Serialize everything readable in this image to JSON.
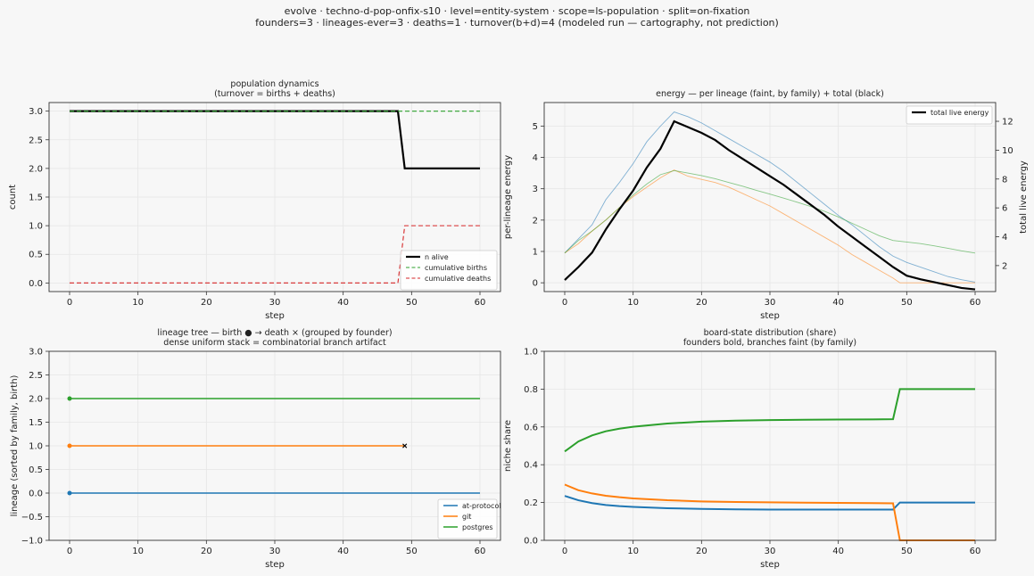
{
  "suptitle": {
    "line1": "evolve · techno-d-pop-onfix-s10 · level=entity-system · scope=ls-population · split=on-fixation",
    "line2": "founders=3 · lineages-ever=3 · deaths=1 · turnover(b+d)=4   (modeled run — cartography, not prediction)"
  },
  "colors": {
    "at-protocol": "#1f77b4",
    "git": "#ff7f0e",
    "postgres": "#2ca02c",
    "alive": "#000000",
    "births": "#2ca02c",
    "deaths": "#d62728",
    "axes_bg": "#f7f7f7",
    "grid": "#e6e6e6"
  },
  "chart_data": [
    {
      "id": "population",
      "type": "line",
      "title": "population dynamics",
      "subtitle": "(turnover = births + deaths)",
      "xlabel": "step",
      "ylabel": "count",
      "xlim": [
        -3,
        63
      ],
      "ylim": [
        -0.15,
        3.15
      ],
      "xticks": [
        0,
        10,
        20,
        30,
        40,
        50,
        60
      ],
      "yticks": [
        0.0,
        0.5,
        1.0,
        1.5,
        2.0,
        2.5,
        3.0
      ],
      "yticklabels": [
        "0.0",
        "0.5",
        "1.0",
        "1.5",
        "2.0",
        "2.5",
        "3.0"
      ],
      "grid": true,
      "legend": "lower-right",
      "series": [
        {
          "name": "n alive",
          "color": "#000000",
          "style": "solid",
          "width": 2.2,
          "x": [
            0,
            48,
            49,
            60
          ],
          "y": [
            3,
            3,
            2,
            2
          ]
        },
        {
          "name": "cumulative births",
          "color": "#2ca02c",
          "style": "dashed",
          "width": 1.1,
          "x": [
            0,
            60
          ],
          "y": [
            3,
            3
          ]
        },
        {
          "name": "cumulative deaths",
          "color": "#d62728",
          "style": "dashed",
          "width": 1.1,
          "x": [
            0,
            48,
            49,
            60
          ],
          "y": [
            0,
            0,
            1,
            1
          ]
        }
      ]
    },
    {
      "id": "energy",
      "type": "line",
      "title": "energy — per lineage (faint, by family) + total (black)",
      "xlabel": "step",
      "ylabel": "per-lineage energy",
      "y2label": "total live energy",
      "xlim": [
        -3,
        63
      ],
      "ylim": [
        -0.28,
        5.75
      ],
      "y2lim": [
        0.2,
        13.3
      ],
      "xticks": [
        0,
        10,
        20,
        30,
        40,
        50,
        60
      ],
      "yticks": [
        0,
        1,
        2,
        3,
        4,
        5
      ],
      "y2ticks": [
        2,
        4,
        6,
        8,
        10,
        12
      ],
      "grid": true,
      "legend": "top-right",
      "series": [
        {
          "name": "at-protocol",
          "color": "#1f77b4",
          "faint": true,
          "axis": "left",
          "x": [
            0,
            2,
            4,
            6,
            8,
            10,
            12,
            14,
            16,
            18,
            20,
            22,
            24,
            26,
            28,
            30,
            32,
            34,
            36,
            38,
            40,
            42,
            44,
            46,
            48,
            50,
            52,
            54,
            56,
            58,
            60
          ],
          "y": [
            0.95,
            1.4,
            1.85,
            2.65,
            3.2,
            3.8,
            4.5,
            5.0,
            5.45,
            5.3,
            5.1,
            4.85,
            4.6,
            4.35,
            4.1,
            3.85,
            3.55,
            3.2,
            2.85,
            2.5,
            2.15,
            1.85,
            1.5,
            1.15,
            0.85,
            0.65,
            0.5,
            0.35,
            0.2,
            0.1,
            0.02
          ]
        },
        {
          "name": "git",
          "color": "#ff7f0e",
          "faint": true,
          "axis": "left",
          "x": [
            0,
            2,
            4,
            6,
            8,
            10,
            12,
            14,
            16,
            18,
            20,
            22,
            24,
            26,
            28,
            30,
            32,
            34,
            36,
            38,
            40,
            42,
            44,
            46,
            48,
            49,
            60
          ],
          "y": [
            0.95,
            1.25,
            1.65,
            2.0,
            2.4,
            2.75,
            3.05,
            3.35,
            3.6,
            3.4,
            3.3,
            3.2,
            3.05,
            2.85,
            2.65,
            2.45,
            2.2,
            1.95,
            1.7,
            1.45,
            1.2,
            0.9,
            0.65,
            0.4,
            0.15,
            0.0,
            0.0
          ]
        },
        {
          "name": "postgres",
          "color": "#2ca02c",
          "faint": true,
          "axis": "left",
          "x": [
            0,
            2,
            4,
            6,
            8,
            10,
            12,
            14,
            16,
            18,
            20,
            22,
            24,
            26,
            28,
            30,
            32,
            34,
            36,
            38,
            40,
            42,
            44,
            46,
            48,
            50,
            52,
            54,
            56,
            58,
            60
          ],
          "y": [
            0.95,
            1.35,
            1.65,
            2.0,
            2.4,
            2.8,
            3.15,
            3.45,
            3.58,
            3.5,
            3.42,
            3.32,
            3.2,
            3.08,
            2.95,
            2.83,
            2.7,
            2.57,
            2.43,
            2.28,
            2.1,
            1.9,
            1.7,
            1.5,
            1.35,
            1.3,
            1.25,
            1.18,
            1.1,
            1.02,
            0.95
          ]
        },
        {
          "name": "total live energy",
          "color": "#000000",
          "faint": false,
          "axis": "right",
          "x": [
            0,
            2,
            4,
            6,
            8,
            10,
            12,
            14,
            16,
            18,
            20,
            22,
            24,
            26,
            28,
            30,
            32,
            34,
            36,
            38,
            40,
            42,
            44,
            46,
            48,
            50,
            52,
            54,
            56,
            58,
            60
          ],
          "y": [
            1.0,
            1.9,
            2.9,
            4.5,
            5.9,
            7.2,
            8.8,
            10.1,
            12.0,
            11.6,
            11.2,
            10.7,
            10.0,
            9.4,
            8.8,
            8.2,
            7.6,
            6.9,
            6.2,
            5.5,
            4.7,
            4.0,
            3.3,
            2.6,
            1.9,
            1.3,
            1.05,
            0.85,
            0.65,
            0.45,
            0.35
          ]
        }
      ]
    },
    {
      "id": "lineage",
      "type": "line",
      "title": "lineage tree — birth ● → death ×  (grouped by founder)",
      "subtitle": "dense uniform stack = combinatorial branch artifact",
      "xlabel": "step",
      "ylabel": "lineage (sorted by family, birth)",
      "xlim": [
        -3,
        63
      ],
      "ylim": [
        -1.0,
        3.0
      ],
      "xticks": [
        0,
        10,
        20,
        30,
        40,
        50,
        60
      ],
      "yticks": [
        -1.0,
        -0.5,
        0.0,
        0.5,
        1.0,
        1.5,
        2.0,
        2.5,
        3.0
      ],
      "yticklabels": [
        "−1.0",
        "−0.5",
        "0.0",
        "0.5",
        "1.0",
        "1.5",
        "2.0",
        "2.5",
        "3.0"
      ],
      "grid": true,
      "legend": "lower-right",
      "series": [
        {
          "name": "at-protocol",
          "color": "#1f77b4",
          "y": 0,
          "birth": 0,
          "end": 60,
          "death": null
        },
        {
          "name": "git",
          "color": "#ff7f0e",
          "y": 1,
          "birth": 0,
          "end": 49,
          "death": 49
        },
        {
          "name": "postgres",
          "color": "#2ca02c",
          "y": 2,
          "birth": 0,
          "end": 60,
          "death": null
        }
      ]
    },
    {
      "id": "board",
      "type": "line",
      "title": "board-state distribution (share)",
      "subtitle": "founders bold, branches faint (by family)",
      "xlabel": "step",
      "ylabel": "niche share",
      "xlim": [
        -3,
        63
      ],
      "ylim": [
        0.0,
        1.0
      ],
      "xticks": [
        0,
        10,
        20,
        30,
        40,
        50,
        60
      ],
      "yticks": [
        0.0,
        0.2,
        0.4,
        0.6,
        0.8,
        1.0
      ],
      "yticklabels": [
        "0.0",
        "0.2",
        "0.4",
        "0.6",
        "0.8",
        "1.0"
      ],
      "grid": true,
      "series": [
        {
          "name": "at-protocol",
          "color": "#1f77b4",
          "x": [
            0,
            2,
            4,
            6,
            8,
            10,
            15,
            20,
            25,
            30,
            35,
            40,
            45,
            48,
            49,
            60
          ],
          "y": [
            0.235,
            0.212,
            0.197,
            0.187,
            0.181,
            0.177,
            0.17,
            0.166,
            0.164,
            0.163,
            0.163,
            0.163,
            0.163,
            0.163,
            0.2,
            0.2
          ]
        },
        {
          "name": "git",
          "color": "#ff7f0e",
          "x": [
            0,
            2,
            4,
            6,
            8,
            10,
            15,
            20,
            25,
            30,
            35,
            40,
            45,
            48,
            49,
            60
          ],
          "y": [
            0.295,
            0.265,
            0.248,
            0.236,
            0.228,
            0.222,
            0.212,
            0.206,
            0.203,
            0.201,
            0.199,
            0.198,
            0.197,
            0.196,
            0.0,
            0.0
          ]
        },
        {
          "name": "postgres",
          "color": "#2ca02c",
          "x": [
            0,
            2,
            4,
            6,
            8,
            10,
            15,
            20,
            25,
            30,
            35,
            40,
            45,
            48,
            49,
            60
          ],
          "y": [
            0.47,
            0.523,
            0.555,
            0.577,
            0.591,
            0.601,
            0.618,
            0.628,
            0.633,
            0.636,
            0.638,
            0.639,
            0.64,
            0.641,
            0.8,
            0.8
          ]
        }
      ]
    }
  ]
}
